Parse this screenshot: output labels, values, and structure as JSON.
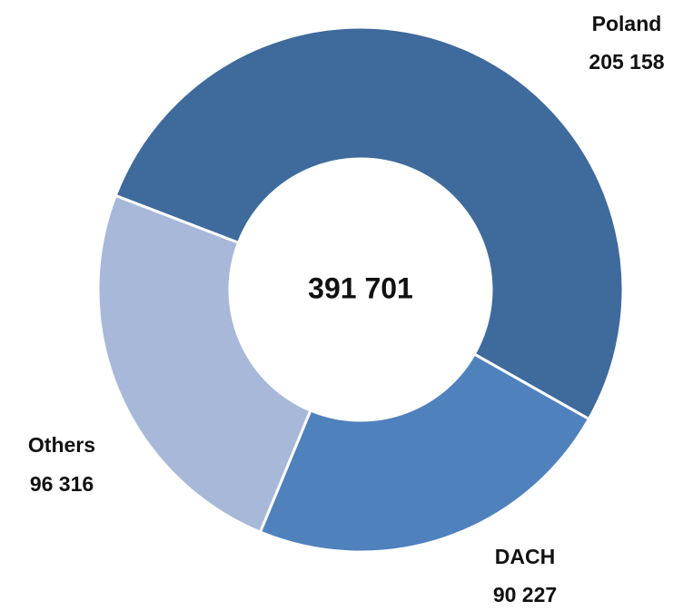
{
  "chart_data": {
    "type": "donut",
    "categories": [
      "Poland",
      "DACH",
      "Others"
    ],
    "values": [
      205158,
      90227,
      96316
    ],
    "value_labels": [
      "205 158",
      "90 227",
      "96 316"
    ],
    "colors": [
      "#3f6a9c",
      "#4f81bd",
      "#a7b8d8"
    ],
    "center_text": "391 701"
  }
}
